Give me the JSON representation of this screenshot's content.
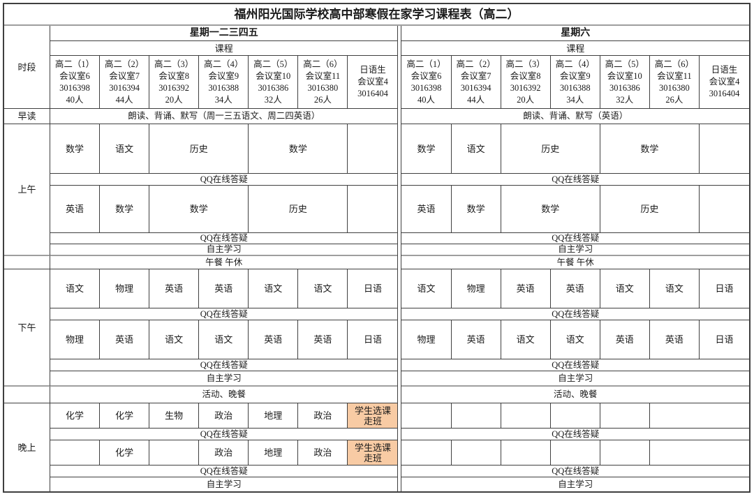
{
  "title": "福州阳光国际学校高中部寒假在家学习课程表（高二）",
  "labels": {
    "time_col": "时段",
    "morning_reading": "早读",
    "am": "上午",
    "pm": "下午",
    "evening": "晚上",
    "course_header": "课程",
    "qq_online": "QQ在线答疑",
    "self_study": "自主学习",
    "lunch_break": "午餐 午休",
    "activity_dinner": "活动、晚餐"
  },
  "weekday": {
    "day_header": "星期一二三四五",
    "classes": [
      {
        "grade": "高二（1）",
        "room": "会议室6",
        "qq_group": "3016398",
        "size": "40人"
      },
      {
        "grade": "高二（2）",
        "room": "会议室7",
        "qq_group": "3016394",
        "size": "44人"
      },
      {
        "grade": "高二（3）",
        "room": "会议室8",
        "qq_group": "3016392",
        "size": "20人"
      },
      {
        "grade": "高二（4）",
        "room": "会议室9",
        "qq_group": "3016388",
        "size": "34人"
      },
      {
        "grade": "高二（5）",
        "room": "会议室10",
        "qq_group": "3016386",
        "size": "32人"
      },
      {
        "grade": "高二（6）",
        "room": "会议室11",
        "qq_group": "3016380",
        "size": "26人"
      },
      {
        "grade": "日语生",
        "room": "会议室4",
        "qq_group": "3016404",
        "size": ""
      }
    ],
    "morning_reading_text": "朗读、背诵、默写（周一三五语文、周二四英语）",
    "am_row1": [
      "数学",
      "语文",
      "历史",
      "数学",
      ""
    ],
    "am_row2": [
      "英语",
      "数学",
      "数学",
      "历史",
      ""
    ],
    "pm_row1": [
      "语文",
      "物理",
      "英语",
      "英语",
      "语文",
      "语文",
      "日语"
    ],
    "pm_row2": [
      "物理",
      "英语",
      "语文",
      "语文",
      "英语",
      "英语",
      "日语"
    ],
    "eve_row1": [
      "化学",
      "化学",
      "生物",
      "政治",
      "地理",
      "政治",
      "学生选课走班"
    ],
    "eve_row2": [
      "",
      "化学",
      "",
      "政治",
      "地理",
      "政治",
      "学生选课走班"
    ]
  },
  "saturday": {
    "day_header": "星期六",
    "classes": [
      {
        "grade": "高二（1）",
        "room": "会议室6",
        "qq_group": "3016398",
        "size": "40人"
      },
      {
        "grade": "高二（2）",
        "room": "会议室7",
        "qq_group": "3016394",
        "size": "44人"
      },
      {
        "grade": "高二（3）",
        "room": "会议室8",
        "qq_group": "3016392",
        "size": "20人"
      },
      {
        "grade": "高二（4）",
        "room": "会议室9",
        "qq_group": "3016388",
        "size": "34人"
      },
      {
        "grade": "高二（5）",
        "room": "会议室10",
        "qq_group": "3016386",
        "size": "32人"
      },
      {
        "grade": "高二（6）",
        "room": "会议室11",
        "qq_group": "3016380",
        "size": "26人"
      },
      {
        "grade": "日语生",
        "room": "会议室4",
        "qq_group": "3016404",
        "size": ""
      }
    ],
    "morning_reading_text": "朗读、背诵、默写（英语）",
    "am_row1": [
      "数学",
      "语文",
      "历史",
      "数学",
      ""
    ],
    "am_row2": [
      "英语",
      "数学",
      "数学",
      "历史",
      ""
    ],
    "pm_row1": [
      "语文",
      "物理",
      "英语",
      "英语",
      "语文",
      "语文",
      "日语"
    ],
    "pm_row2": [
      "物理",
      "英语",
      "语文",
      "语文",
      "英语",
      "英语",
      "日语"
    ],
    "eve_row1": [
      "",
      "",
      "",
      "",
      "",
      ""
    ],
    "eve_row2": [
      "",
      "",
      "",
      "",
      "",
      ""
    ]
  },
  "colors": {
    "highlight_cell": "#F8CBA4",
    "grid_line": "#3f3f3f",
    "section_divider": "#9e9e9e"
  }
}
